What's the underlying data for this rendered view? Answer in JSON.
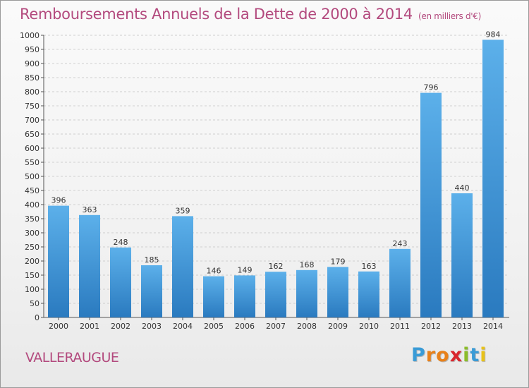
{
  "title": "Remboursements Annuels de la Dette de 2000 à 2014",
  "subtitle": "(en milliers d'€)",
  "commune": "VALLERAUGUE",
  "logo": {
    "letters": [
      "P",
      "r",
      "o",
      "x",
      "i",
      "t",
      "i"
    ],
    "colors": [
      "#3a9bd6",
      "#e8811a",
      "#e8811a",
      "#d9262e",
      "#8bbd2a",
      "#3a9bd6",
      "#e8c21a"
    ]
  },
  "colors": {
    "bar_light": "#5cb0ea",
    "bar_dark": "#2a7abf",
    "title": "#b34a7e"
  },
  "chart_data": {
    "type": "bar",
    "categories": [
      "2000",
      "2001",
      "2002",
      "2003",
      "2004",
      "2005",
      "2006",
      "2007",
      "2008",
      "2009",
      "2010",
      "2011",
      "2012",
      "2013",
      "2014"
    ],
    "values": [
      396,
      363,
      248,
      185,
      359,
      146,
      149,
      162,
      168,
      179,
      163,
      243,
      796,
      440,
      984
    ],
    "ylim": [
      0,
      1000
    ],
    "yticks": [
      0,
      50,
      100,
      150,
      200,
      250,
      300,
      350,
      400,
      450,
      500,
      550,
      600,
      650,
      700,
      750,
      800,
      850,
      900,
      950,
      1000
    ],
    "grid": true,
    "xlabel": "",
    "ylabel": ""
  }
}
